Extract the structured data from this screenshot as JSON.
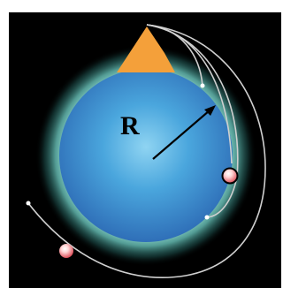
{
  "diagram": {
    "radius_label": "R",
    "colors": {
      "background": "#000000",
      "planet_core": "#4aa6dd",
      "planet_edge": "#2f6fb8",
      "glow": "#aef3e8",
      "mountain": "#f4a03a",
      "orbit_path": "#cfcfcf",
      "projectile_light": "#ffe3e3",
      "projectile_dark": "#d8404c",
      "radius_arrow": "#000000",
      "label_text": "#000000"
    }
  }
}
